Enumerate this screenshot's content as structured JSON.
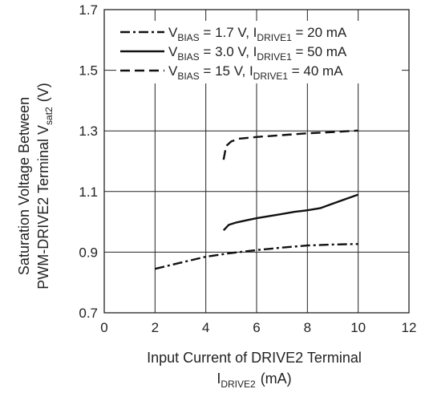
{
  "chart_data": {
    "type": "line",
    "xlabel": {
      "line1": "Input Current of DRIVE2 Terminal",
      "line2_main": "I",
      "line2_sub": "DRIVE2",
      "line2_unit": "(mA)"
    },
    "ylabel": {
      "line1": "Saturation Voltage Between",
      "line2_main": "PWM-DRIVE2 Terminal  V",
      "line2_sub": "sat2",
      "line2_unit": "(V)"
    },
    "xlim": [
      0,
      12
    ],
    "ylim": [
      0.7,
      1.7
    ],
    "xticks": [
      "0",
      "2",
      "4",
      "6",
      "8",
      "10",
      "12"
    ],
    "yticks": [
      "0.7",
      "0.9",
      "1.1",
      "1.3",
      "1.5",
      "1.7"
    ],
    "grid": true,
    "legend_position": "top",
    "series": [
      {
        "style": "dashdot",
        "legend": {
          "vsym": "V",
          "vsub": "BIAS",
          "vval": " = 1.7 V, ",
          "isym": "I",
          "isub": "DRIVE1",
          "ival": " = 20 mA"
        },
        "x": [
          2,
          3,
          4,
          5,
          6,
          7,
          8,
          9,
          10
        ],
        "y": [
          0.845,
          0.865,
          0.885,
          0.897,
          0.907,
          0.915,
          0.922,
          0.925,
          0.927
        ]
      },
      {
        "style": "solid",
        "legend": {
          "vsym": "V",
          "vsub": "BIAS",
          "vval": " = 3.0 V, ",
          "isym": "I",
          "isub": "DRIVE1",
          "ival": " = 50 mA"
        },
        "x": [
          4.7,
          4.9,
          5.2,
          5.6,
          6,
          6.5,
          7,
          7.5,
          8,
          8.5,
          9,
          9.5,
          10
        ],
        "y": [
          0.972,
          0.99,
          0.998,
          1.005,
          1.012,
          1.019,
          1.026,
          1.033,
          1.038,
          1.045,
          1.06,
          1.075,
          1.09
        ]
      },
      {
        "style": "dashed",
        "legend": {
          "vsym": "V",
          "vsub": "BIAS",
          "vval": " = 15 V, ",
          "isym": "I",
          "isub": "DRIVE1",
          "ival": " = 40 mA"
        },
        "x": [
          4.7,
          4.8,
          5,
          5.3,
          6,
          7,
          8,
          9,
          10
        ],
        "y": [
          1.205,
          1.25,
          1.265,
          1.274,
          1.28,
          1.286,
          1.292,
          1.296,
          1.301
        ]
      }
    ]
  }
}
